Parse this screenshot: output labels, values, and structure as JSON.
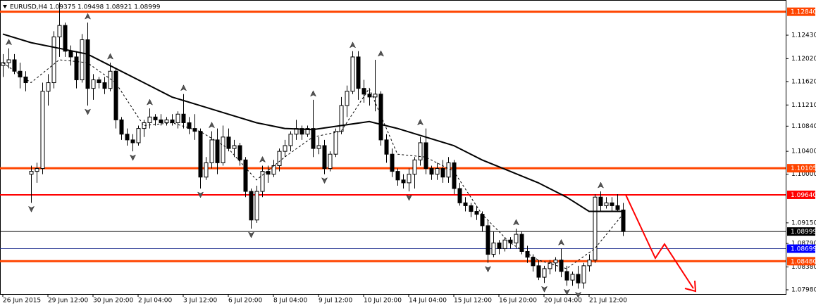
{
  "chart_data": {
    "type": "candlestick",
    "title": "EURUSD,H4  1.09375 1.09498 1.08921 1.08999",
    "xlim": [
      -0.5,
      138.875
    ],
    "ylim": [
      1.07906,
      1.13045
    ],
    "xticks": [
      {
        "value": 0,
        "label": "26 Jun 2015"
      },
      {
        "value": 8,
        "label": "29 Jun 12:00"
      },
      {
        "value": 16,
        "label": "30 Jun 20:00"
      },
      {
        "value": 24,
        "label": "2 Jul 04:00"
      },
      {
        "value": 32,
        "label": "3 Jul 12:00"
      },
      {
        "value": 40,
        "label": "6 Jul 20:00"
      },
      {
        "value": 48,
        "label": "8 Jul 04:00"
      },
      {
        "value": 56,
        "label": "9 Jul 12:00"
      },
      {
        "value": 64,
        "label": "10 Jul 20:00"
      },
      {
        "value": 72,
        "label": "14 Jul 04:00"
      },
      {
        "value": 80,
        "label": "15 Jul 12:00"
      },
      {
        "value": 88,
        "label": "16 Jul 20:00"
      },
      {
        "value": 96,
        "label": "20 Jul 04:00"
      },
      {
        "value": 104,
        "label": "21 Jul 12:00"
      }
    ],
    "yticks": [
      {
        "value": 1.1243,
        "label": "1.12430"
      },
      {
        "value": 1.1202,
        "label": "1.12020"
      },
      {
        "value": 1.1162,
        "label": "1.11620"
      },
      {
        "value": 1.1121,
        "label": "1.11210"
      },
      {
        "value": 1.1084,
        "label": "1.10840"
      },
      {
        "value": 1.104,
        "label": "1.10400"
      },
      {
        "value": 1.1,
        "label": "1.10000"
      },
      {
        "value": 1.0915,
        "label": "1.09150"
      },
      {
        "value": 1.0879,
        "label": "1.08790"
      },
      {
        "value": 1.0838,
        "label": "1.08380"
      },
      {
        "value": 1.0798,
        "label": "1.07980"
      }
    ],
    "up_color": "#ffffff",
    "down_color": "#000000",
    "candles": [
      [
        1.119,
        1.121,
        1.117,
        1.1195
      ],
      [
        1.1195,
        1.122,
        1.1185,
        1.12
      ],
      [
        1.12,
        1.121,
        1.1175,
        1.118
      ],
      [
        1.118,
        1.1195,
        1.115,
        1.117
      ],
      [
        1.117,
        1.118,
        1.1145,
        1.116
      ],
      [
        1.1,
        1.1015,
        1.095,
        1.1005
      ],
      [
        1.1005,
        1.102,
        1.0985,
        1.101
      ],
      [
        1.101,
        1.116,
        1.1,
        1.1145
      ],
      [
        1.1145,
        1.1175,
        1.112,
        1.116
      ],
      [
        1.116,
        1.125,
        1.115,
        1.124
      ],
      [
        1.124,
        1.13,
        1.1205,
        1.126
      ],
      [
        1.126,
        1.1265,
        1.1205,
        1.1215
      ],
      [
        1.1215,
        1.1225,
        1.119,
        1.1205
      ],
      [
        1.1205,
        1.1215,
        1.115,
        1.1165
      ],
      [
        1.1165,
        1.1245,
        1.116,
        1.1235
      ],
      [
        1.1235,
        1.1265,
        1.112,
        1.115
      ],
      [
        1.115,
        1.1175,
        1.113,
        1.1165
      ],
      [
        1.1165,
        1.117,
        1.115,
        1.116
      ],
      [
        1.116,
        1.117,
        1.114,
        1.115
      ],
      [
        1.115,
        1.1195,
        1.1145,
        1.118
      ],
      [
        1.118,
        1.1185,
        1.108,
        1.1095
      ],
      [
        1.1095,
        1.11,
        1.106,
        1.107
      ],
      [
        1.107,
        1.108,
        1.105,
        1.106
      ],
      [
        1.106,
        1.107,
        1.104,
        1.1055
      ],
      [
        1.1055,
        1.1085,
        1.105,
        1.108
      ],
      [
        1.108,
        1.1095,
        1.1065,
        1.109
      ],
      [
        1.109,
        1.1115,
        1.108,
        1.11
      ],
      [
        1.11,
        1.1105,
        1.1085,
        1.1095
      ],
      [
        1.1095,
        1.1105,
        1.1085,
        1.109
      ],
      [
        1.109,
        1.11,
        1.1085,
        1.1095
      ],
      [
        1.1095,
        1.1105,
        1.1085,
        1.109
      ],
      [
        1.109,
        1.111,
        1.108,
        1.1105
      ],
      [
        1.1105,
        1.114,
        1.108,
        1.109
      ],
      [
        1.109,
        1.11,
        1.107,
        1.108
      ],
      [
        1.108,
        1.1105,
        1.106,
        1.1075
      ],
      [
        1.1075,
        1.108,
        1.0975,
        1.0995
      ],
      [
        1.0995,
        1.103,
        1.099,
        1.102
      ],
      [
        1.102,
        1.1075,
        1.101,
        1.106
      ],
      [
        1.106,
        1.108,
        1.1,
        1.102
      ],
      [
        1.102,
        1.1085,
        1.1015,
        1.1065
      ],
      [
        1.1065,
        1.108,
        1.104,
        1.1045
      ],
      [
        1.1045,
        1.106,
        1.103,
        1.105
      ],
      [
        1.105,
        1.1055,
        1.1015,
        1.1025
      ],
      [
        1.1025,
        1.103,
        1.096,
        1.097
      ],
      [
        1.097,
        1.0975,
        1.0905,
        1.092
      ],
      [
        1.092,
        1.098,
        1.0915,
        1.097
      ],
      [
        1.097,
        1.1015,
        1.096,
        1.1005
      ],
      [
        1.1005,
        1.1015,
        1.0985,
        1.1
      ],
      [
        1.1,
        1.1025,
        1.0995,
        1.1015
      ],
      [
        1.1015,
        1.1045,
        1.1005,
        1.104
      ],
      [
        1.104,
        1.106,
        1.103,
        1.105
      ],
      [
        1.105,
        1.1075,
        1.104,
        1.107
      ],
      [
        1.107,
        1.1095,
        1.106,
        1.108
      ],
      [
        1.108,
        1.1085,
        1.106,
        1.107
      ],
      [
        1.107,
        1.1085,
        1.1065,
        1.108
      ],
      [
        1.108,
        1.113,
        1.103,
        1.1045
      ],
      [
        1.1045,
        1.1065,
        1.1035,
        1.105
      ],
      [
        1.105,
        1.106,
        1.1,
        1.101
      ],
      [
        1.101,
        1.104,
        1.1005,
        1.1035
      ],
      [
        1.1035,
        1.108,
        1.103,
        1.1075
      ],
      [
        1.1075,
        1.1135,
        1.107,
        1.112
      ],
      [
        1.112,
        1.1155,
        1.11,
        1.1145
      ],
      [
        1.1145,
        1.1215,
        1.114,
        1.1205
      ],
      [
        1.1205,
        1.1215,
        1.113,
        1.115
      ],
      [
        1.115,
        1.1165,
        1.1125,
        1.114
      ],
      [
        1.114,
        1.115,
        1.112,
        1.1135
      ],
      [
        1.1135,
        1.12,
        1.111,
        1.114
      ],
      [
        1.114,
        1.1145,
        1.105,
        1.106
      ],
      [
        1.106,
        1.107,
        1.102,
        1.1035
      ],
      [
        1.1035,
        1.1045,
        1.0995,
        1.1005
      ],
      [
        1.1005,
        1.101,
        1.098,
        1.099
      ],
      [
        1.099,
        1.1,
        1.0975,
        1.0985
      ],
      [
        1.0985,
        1.101,
        1.097,
        1.1
      ],
      [
        1.1,
        1.103,
        1.0975,
        1.1025
      ],
      [
        1.1025,
        1.1065,
        1.1015,
        1.1055
      ],
      [
        1.1055,
        1.108,
        1.1,
        1.101
      ],
      [
        1.101,
        1.1015,
        1.099,
        1.1
      ],
      [
        1.1,
        1.102,
        1.099,
        1.101
      ],
      [
        1.101,
        1.1025,
        1.0985,
        1.0995
      ],
      [
        1.0995,
        1.103,
        1.0985,
        1.102
      ],
      [
        1.102,
        1.1025,
        1.0965,
        1.0975
      ],
      [
        1.0975,
        1.0985,
        1.0945,
        1.095
      ],
      [
        1.095,
        1.096,
        1.0935,
        1.0945
      ],
      [
        1.0945,
        1.095,
        1.0925,
        1.0935
      ],
      [
        1.0935,
        1.0945,
        1.092,
        1.093
      ],
      [
        1.093,
        1.0935,
        1.09,
        1.091
      ],
      [
        1.091,
        1.092,
        1.0845,
        1.086
      ],
      [
        1.086,
        1.09,
        1.0855,
        1.088
      ],
      [
        1.088,
        1.0885,
        1.086,
        1.087
      ],
      [
        1.087,
        1.089,
        1.0865,
        1.0885
      ],
      [
        1.0885,
        1.089,
        1.087,
        1.088
      ],
      [
        1.088,
        1.0905,
        1.087,
        1.0895
      ],
      [
        1.0895,
        1.09,
        1.086,
        1.0865
      ],
      [
        1.0865,
        1.0875,
        1.0845,
        1.0855
      ],
      [
        1.0855,
        1.086,
        1.083,
        1.084
      ],
      [
        1.084,
        1.085,
        1.0815,
        1.082
      ],
      [
        1.082,
        1.084,
        1.081,
        1.0835
      ],
      [
        1.0835,
        1.085,
        1.0825,
        1.0845
      ],
      [
        1.0845,
        1.0855,
        1.083,
        1.085
      ],
      [
        1.085,
        1.087,
        1.082,
        1.083
      ],
      [
        1.083,
        1.084,
        1.0805,
        1.0815
      ],
      [
        1.0815,
        1.083,
        1.0805,
        1.0825
      ],
      [
        1.0825,
        1.084,
        1.08,
        1.081
      ],
      [
        1.081,
        1.0845,
        1.08,
        1.084
      ],
      [
        1.084,
        1.086,
        1.083,
        1.085
      ],
      [
        1.085,
        1.0965,
        1.0845,
        1.096
      ],
      [
        1.096,
        1.097,
        1.0935,
        1.0945
      ],
      [
        1.0945,
        1.096,
        1.094,
        1.095
      ],
      [
        1.095,
        1.096,
        1.0935,
        1.0945
      ],
      [
        1.0945,
        1.0965,
        1.0935,
        1.0938
      ],
      [
        1.09375,
        1.09498,
        1.08921,
        1.08999
      ]
    ],
    "lines": [
      {
        "color": "#000000",
        "width": 2,
        "dashed": false,
        "x": [
          0,
          5,
          10,
          15,
          20,
          25,
          30,
          35,
          40,
          45,
          50,
          55,
          60,
          65,
          70,
          75,
          80,
          85,
          90,
          95,
          100,
          104,
          110
        ],
        "values": [
          1.1245,
          1.123,
          1.122,
          1.121,
          1.1185,
          1.116,
          1.1135,
          1.112,
          1.1105,
          1.109,
          1.108,
          1.1078,
          1.1085,
          1.1092,
          1.108,
          1.1065,
          1.105,
          1.1025,
          1.1005,
          1.0985,
          1.096,
          1.0935,
          1.0935
        ]
      },
      {
        "color": "#000000",
        "width": 1,
        "dashed": true,
        "x": [
          0,
          5,
          10,
          15,
          20,
          25,
          30,
          35,
          40,
          45,
          50,
          55,
          60,
          65,
          70,
          75,
          80,
          85,
          90,
          95,
          100,
          105,
          110
        ],
        "values": [
          1.1195,
          1.116,
          1.12,
          1.1195,
          1.116,
          1.1085,
          1.109,
          1.1075,
          1.1045,
          1.099,
          1.103,
          1.1065,
          1.1075,
          1.115,
          1.1035,
          1.103,
          1.1005,
          1.093,
          1.088,
          1.085,
          1.0835,
          1.087,
          1.093
        ]
      }
    ],
    "fractals_up": {
      "x": [
        1,
        10,
        15,
        19,
        26,
        32,
        37,
        46,
        55,
        62,
        67,
        74,
        91,
        99,
        106
      ],
      "values": [
        1.122,
        1.13,
        1.1265,
        1.1195,
        1.1115,
        1.114,
        1.1075,
        1.1015,
        1.113,
        1.1215,
        1.12,
        1.108,
        1.0905,
        1.087,
        1.097
      ]
    },
    "fractals_down": {
      "x": [
        5,
        15,
        23,
        35,
        44,
        57,
        72,
        86,
        96,
        100,
        102
      ],
      "values": [
        1.095,
        1.112,
        1.104,
        1.0975,
        1.0905,
        1.1,
        1.097,
        1.0845,
        1.081,
        1.0805,
        1.08
      ]
    },
    "levels": [
      {
        "value": 1.1284,
        "label": "1.12840",
        "color": "#ff4500",
        "width": 3
      },
      {
        "value": 1.10105,
        "label": "1.10105",
        "color": "#ff4500",
        "width": 3
      },
      {
        "value": 1.0964,
        "label": "1.09640",
        "color": "#ff0000",
        "width": 2
      },
      {
        "value": 1.08999,
        "label": "1.08999",
        "color": "#000000",
        "width": 1
      },
      {
        "value": 1.08699,
        "label": "1.08699",
        "color": "#1f2f8f",
        "label_color": "#0000ff",
        "width": 1
      },
      {
        "value": 1.0848,
        "label": "1.08480",
        "color": "#ff4500",
        "width": 3
      }
    ]
  }
}
